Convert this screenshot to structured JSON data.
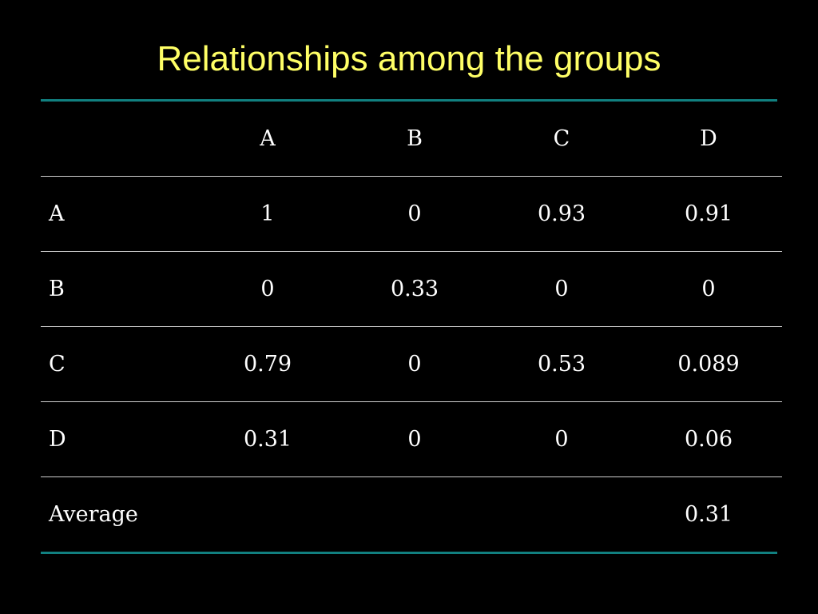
{
  "colors": {
    "background": "#000000",
    "title": "#ffff66",
    "accent_rule": "#118080",
    "text": "#ffffff",
    "grid": "#cfcfcf"
  },
  "title": "Relationships among the groups",
  "table": {
    "columns": [
      "",
      "A",
      "B",
      "C",
      "D"
    ],
    "rows": [
      {
        "label": "A",
        "cells": [
          "1",
          "0",
          "0.93",
          "0.91"
        ]
      },
      {
        "label": "B",
        "cells": [
          "0",
          "0.33",
          "0",
          "0"
        ]
      },
      {
        "label": "C",
        "cells": [
          "0.79",
          "0",
          "0.53",
          "0.089"
        ]
      },
      {
        "label": "D",
        "cells": [
          "0.31",
          "0",
          "0",
          "0.06"
        ]
      },
      {
        "label": "Average",
        "cells": [
          "",
          "",
          "",
          "0.31"
        ]
      }
    ]
  }
}
